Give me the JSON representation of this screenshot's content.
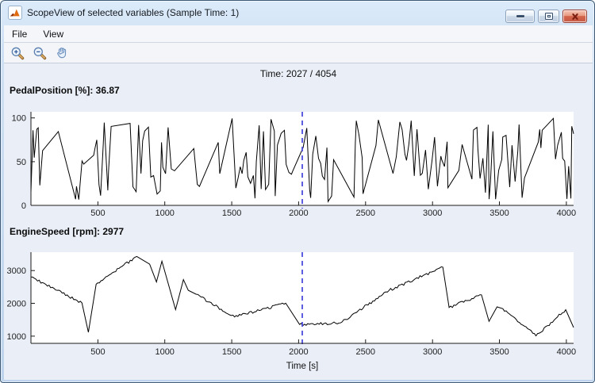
{
  "window": {
    "title": "ScopeView of selected variables (Sample Time: 1)"
  },
  "menu": {
    "file": "File",
    "view": "View"
  },
  "toolbar": {
    "buttons": [
      {
        "name": "zoom-in"
      },
      {
        "name": "zoom-out"
      },
      {
        "name": "pan"
      }
    ]
  },
  "time_indicator": {
    "label": "Time: 2027 / 4054",
    "current": 2027,
    "total": 4054
  },
  "colors": {
    "cursor": "#4c4cdf",
    "signal": "#000000",
    "plot_background": "#ffffff",
    "axis": "#1a1a1a",
    "tick_text": "#222222",
    "content_background": "#e9eef7",
    "titlebar_top": "#dcebfa",
    "titlebar_bottom": "#bed4ec",
    "close_button": "#c85a44"
  },
  "chart_data": [
    {
      "type": "line",
      "title": "PedalPosition [%]: 36.87",
      "signal_name": "PedalPosition",
      "unit": "%",
      "cursor_value": 36.87,
      "cursor_time": 2027,
      "xlim": [
        0,
        4054
      ],
      "ylim": [
        0,
        107
      ],
      "xticks": [
        500,
        1000,
        1500,
        2000,
        2500,
        3000,
        3500,
        4000
      ],
      "yticks": [
        0,
        50,
        100
      ],
      "xlabel": "",
      "grid": false,
      "legend": false,
      "line_color": "#000000",
      "synth": {
        "kind": "piecewise-random",
        "seed": 42,
        "tmax": 4054,
        "ymin": 4,
        "ymax": 100,
        "start": 15,
        "short": [
          5,
          28
        ],
        "long": [
          70,
          170
        ],
        "longProb": 0.1,
        "noise": 0,
        "noiseStep": 12,
        "noiseMinSeg": 140,
        "rampLocal": 0
      }
    },
    {
      "type": "line",
      "title": "EngineSpeed [rpm]: 2977",
      "signal_name": "EngineSpeed",
      "unit": "rpm",
      "cursor_value": 2977,
      "cursor_time": 2027,
      "xlim": [
        0,
        4054
      ],
      "ylim": [
        780,
        3560
      ],
      "xticks": [
        500,
        1000,
        1500,
        2000,
        2500,
        3000,
        3500,
        4000
      ],
      "yticks": [
        1000,
        2000,
        3000
      ],
      "xlabel": "Time [s]",
      "grid": false,
      "legend": false,
      "line_color": "#000000",
      "synth": {
        "kind": "piecewise-random",
        "seed": 9,
        "tmax": 4054,
        "ymin": 950,
        "ymax": 3430,
        "start": 2800,
        "short": [
          30,
          120
        ],
        "long": [
          160,
          420
        ],
        "longProb": 0.45,
        "noise": 40,
        "noiseStep": 12,
        "noiseMinSeg": 140,
        "rampLocal": 1100
      }
    }
  ]
}
